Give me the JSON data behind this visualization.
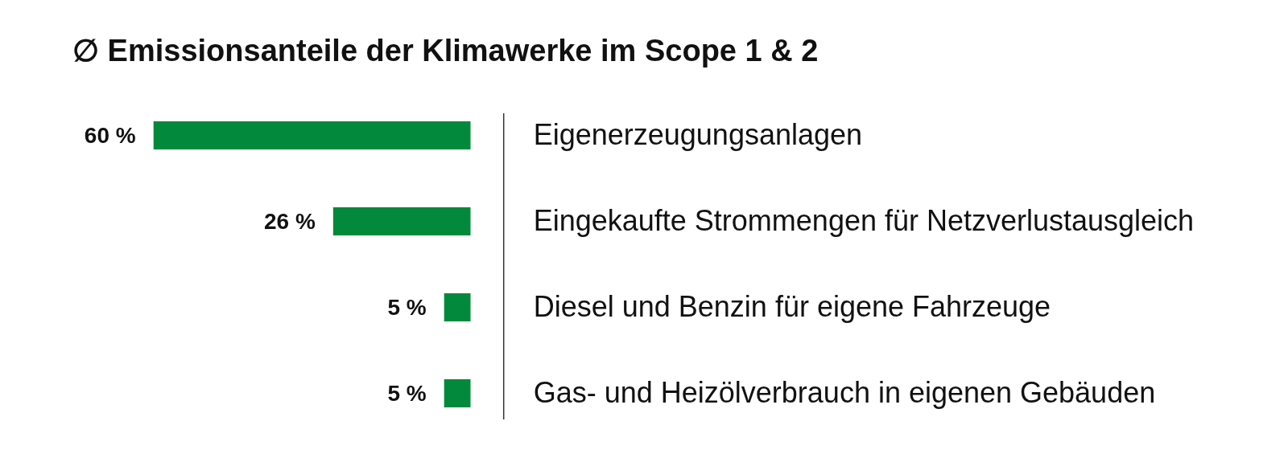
{
  "chart_data": {
    "type": "bar",
    "orientation": "horizontal",
    "title": "∅ Emissionsanteile der Klimawerke im Scope 1 & 2",
    "categories": [
      "Eigenerzeugungsanlagen",
      "Eingekaufte Strommengen für Netzverlustausgleich",
      "Diesel und Benzin für eigene Fahrzeuge",
      "Gas- und Heizölverbrauch in eigenen Gebäuden"
    ],
    "values": [
      60,
      26,
      5,
      5
    ],
    "value_labels": [
      "60 %",
      "26 %",
      "5 %",
      "5 %"
    ],
    "color": "#03893b",
    "tick_labels": "y"
  }
}
